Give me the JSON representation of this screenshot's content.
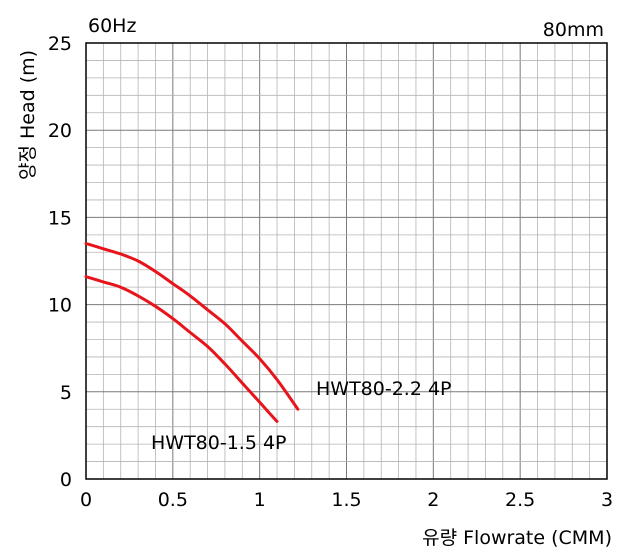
{
  "chart_data": {
    "type": "line",
    "frequency_label": "60Hz",
    "size_label": "80mm",
    "xlabel": "유량 Flowrate (CMM)",
    "ylabel": "양정 Head (m)",
    "xlim": [
      0,
      3
    ],
    "ylim": [
      0,
      25
    ],
    "x_ticks": [
      "0",
      "0.5",
      "1",
      "1.5",
      "2",
      "2.5",
      "3"
    ],
    "y_ticks": [
      "0",
      "5",
      "10",
      "15",
      "20",
      "25"
    ],
    "grid": true,
    "curve_color": "#e8141c",
    "series": [
      {
        "name": "HWT80-2.2 4P",
        "x": [
          0,
          0.1,
          0.2,
          0.3,
          0.4,
          0.5,
          0.6,
          0.7,
          0.8,
          0.9,
          1.0,
          1.1,
          1.22
        ],
        "y": [
          13.5,
          13.2,
          12.9,
          12.5,
          11.9,
          11.2,
          10.5,
          9.7,
          8.9,
          7.9,
          6.9,
          5.7,
          4.0
        ]
      },
      {
        "name": "HWT80-1.5 4P",
        "x": [
          0,
          0.1,
          0.2,
          0.3,
          0.4,
          0.5,
          0.6,
          0.7,
          0.8,
          0.9,
          1.0,
          1.1
        ],
        "y": [
          11.6,
          11.3,
          11.0,
          10.5,
          9.9,
          9.2,
          8.4,
          7.6,
          6.6,
          5.5,
          4.4,
          3.3
        ]
      }
    ]
  }
}
